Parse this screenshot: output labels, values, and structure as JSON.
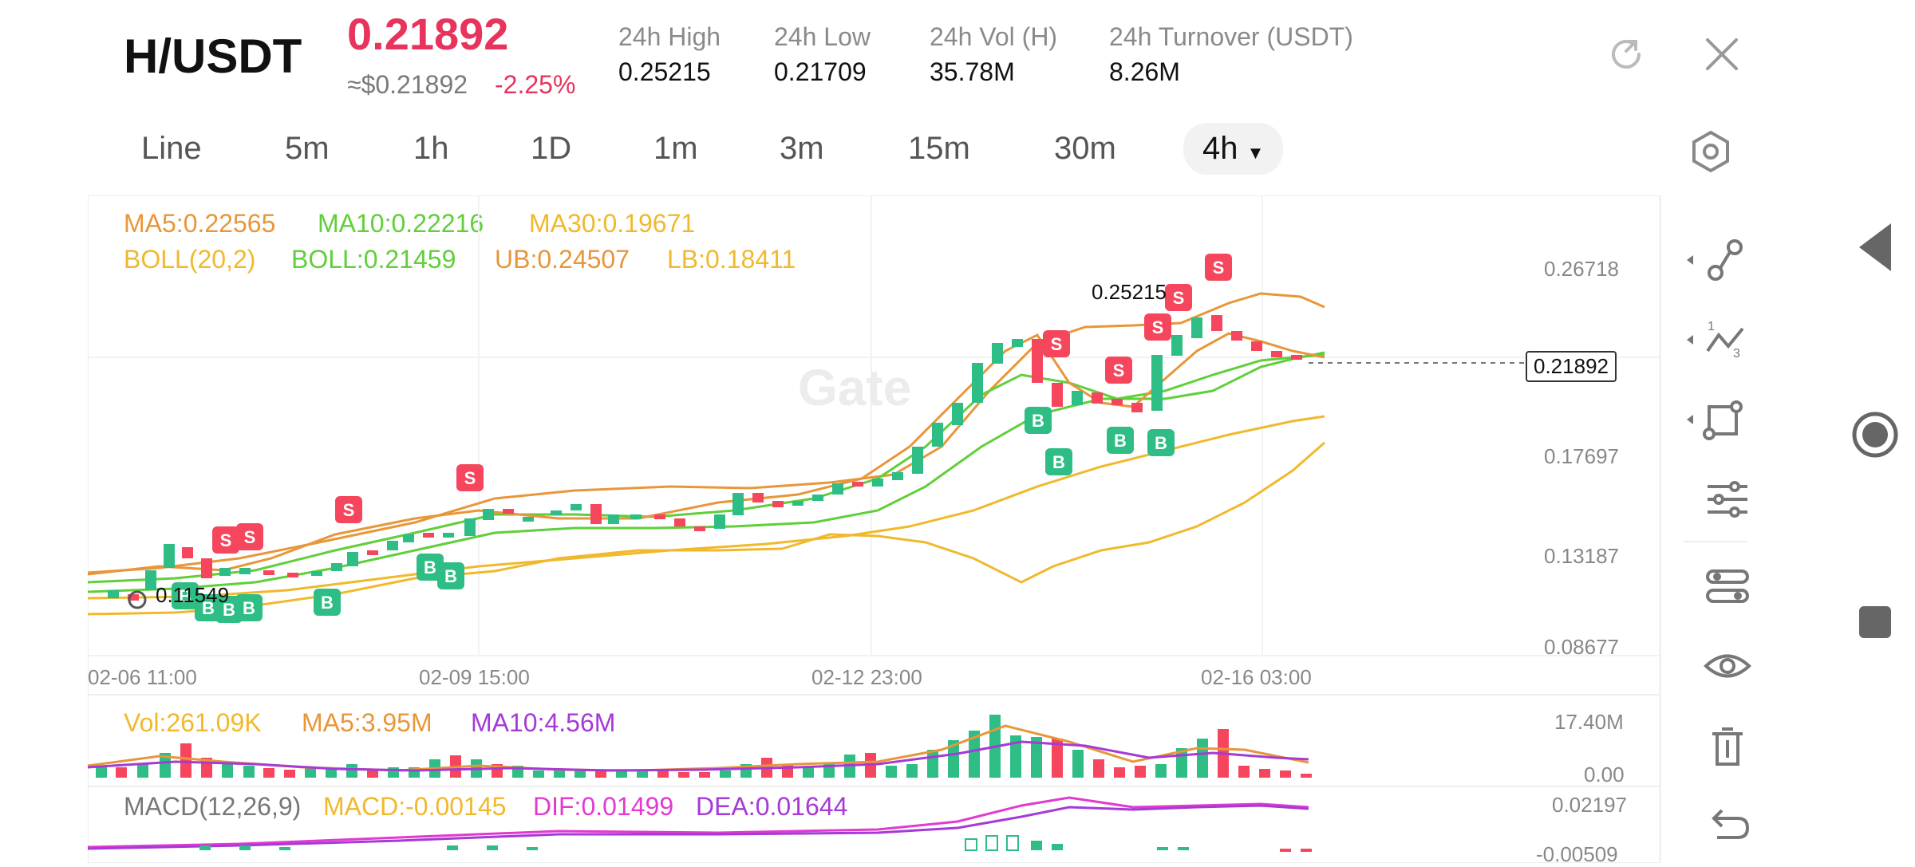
{
  "header": {
    "pair": "H/USDT",
    "price": "0.21892",
    "usd_price": "≈$0.21892",
    "change": "-2.25%",
    "stats": [
      {
        "label": "24h High",
        "value": "0.25215"
      },
      {
        "label": "24h Low",
        "value": "0.21709"
      },
      {
        "label": "24h Vol (H)",
        "value": "35.78M"
      },
      {
        "label": "24h Turnover (USDT)",
        "value": "8.26M"
      }
    ]
  },
  "timeframes": [
    "Line",
    "5m",
    "1h",
    "1D",
    "1m",
    "3m",
    "15m",
    "30m"
  ],
  "active_timeframe": "4h",
  "indicators": {
    "ma5": "MA5:0.22565",
    "ma10": "MA10:0.22216",
    "ma30": "MA30:0.19671",
    "boll": "BOLL(20,2)",
    "boll_val": "BOLL:0.21459",
    "ub": "UB:0.24507",
    "lb": "LB:0.18411"
  },
  "price_axis": [
    "0.26718",
    "0.17697",
    "0.13187",
    "0.08677"
  ],
  "time_axis": [
    "02-06 11:00",
    "02-09 15:00",
    "02-12 23:00",
    "02-16 03:00"
  ],
  "current_price_tag": "0.21892",
  "annotations": {
    "high": "0.25215",
    "low": "0.11549"
  },
  "volume": {
    "vol": "Vol:261.09K",
    "ma5": "MA5:3.95M",
    "ma10": "MA10:4.56M",
    "axis_top": "17.40M",
    "axis_bottom": "0.00"
  },
  "macd": {
    "label": "MACD(12,26,9)",
    "macd": "MACD:-0.00145",
    "dif": "DIF:0.01499",
    "dea": "DEA:0.01644",
    "axis_top": "0.02197",
    "axis_bottom": "-0.00509"
  },
  "colors": {
    "up": "#2ebd85",
    "down": "#f6465d",
    "ma5": "#e8963a",
    "ma10": "#5fcf3a",
    "ma30": "#f0b92d",
    "dif": "#e23ad0",
    "dea": "#a53ad6"
  },
  "watermark": "Gate"
}
